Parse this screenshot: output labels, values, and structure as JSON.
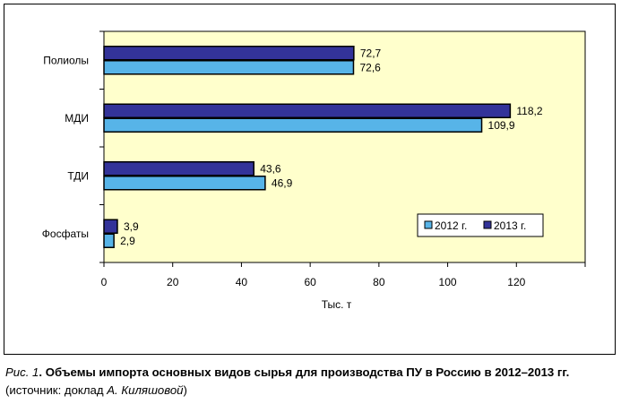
{
  "chart_data": {
    "type": "bar",
    "orientation": "horizontal",
    "categories": [
      "Полиолы",
      "МДИ",
      "ТДИ",
      "Фосфаты"
    ],
    "series": [
      {
        "name": "2013 г.",
        "values": [
          72.7,
          118.2,
          43.6,
          3.9
        ],
        "color": "#333399",
        "labels": [
          "72,7",
          "118,2",
          "43,6",
          "3,9"
        ]
      },
      {
        "name": "2012 г.",
        "values": [
          72.6,
          109.9,
          46.9,
          2.9
        ],
        "color": "#57b4e8",
        "labels": [
          "72,6",
          "109,9",
          "46,9",
          "2,9"
        ]
      }
    ],
    "xlabel": "Тыс. т",
    "xlim": [
      0,
      140
    ],
    "xticks": [
      0,
      20,
      40,
      60,
      80,
      100,
      120
    ],
    "xtick_labels": [
      "0",
      "20",
      "40",
      "60",
      "80",
      "100",
      "120"
    ],
    "plot_background": "#ffffcc",
    "legend": {
      "placement": "lower-right",
      "order": [
        "2012 г.",
        "2013 г."
      ]
    },
    "grid": false
  },
  "caption": {
    "fig_num": "Рис. 1",
    "title": ". Объемы импорта основных видов сырья для производства ПУ в Россию в 2012–2013 гг.",
    "source_prefix": "(источник: доклад ",
    "source_author": "А. Киляшовой",
    "source_suffix": ")"
  }
}
